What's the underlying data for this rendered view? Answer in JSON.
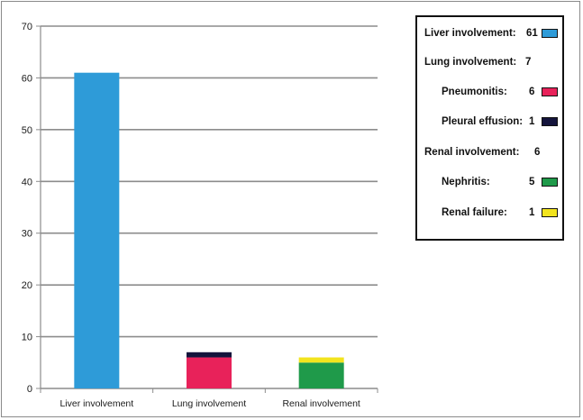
{
  "chart_data": {
    "type": "bar",
    "stacked": true,
    "categories": [
      "Liver involvement",
      "Lung involvement",
      "Renal involvement"
    ],
    "series": [
      {
        "name": "Liver involvement",
        "color": "#2e9bd8",
        "values": [
          61,
          0,
          0
        ]
      },
      {
        "name": "Pneumonitis",
        "color": "#e8225a",
        "values": [
          0,
          6,
          0
        ]
      },
      {
        "name": "Pleural effusion",
        "color": "#14143c",
        "values": [
          0,
          1,
          0
        ]
      },
      {
        "name": "Nephritis",
        "color": "#1f9a4a",
        "values": [
          0,
          0,
          5
        ]
      },
      {
        "name": "Renal failure",
        "color": "#f2e41e",
        "values": [
          0,
          0,
          1
        ]
      }
    ],
    "ylim": [
      0,
      70
    ],
    "yticks": [
      0,
      10,
      20,
      30,
      40,
      50,
      60,
      70
    ],
    "grid": true,
    "legend_position": "top-right"
  },
  "legend": {
    "rows": [
      {
        "label": "Liver involvement:",
        "value": "61",
        "color": "#2e9bd8",
        "indent": false
      },
      {
        "label": "Lung involvement:",
        "value": "7",
        "color": null,
        "indent": false
      },
      {
        "label": "Pneumonitis:",
        "value": "6",
        "color": "#e8225a",
        "indent": true
      },
      {
        "label": "Pleural effusion:",
        "value": "1",
        "color": "#14143c",
        "indent": true
      },
      {
        "label": "Renal involvement:",
        "value": "6",
        "color": null,
        "indent": false
      },
      {
        "label": "Nephritis:",
        "value": "5",
        "color": "#1f9a4a",
        "indent": true
      },
      {
        "label": "Renal failure:",
        "value": "1",
        "color": "#f2e41e",
        "indent": true
      }
    ]
  }
}
